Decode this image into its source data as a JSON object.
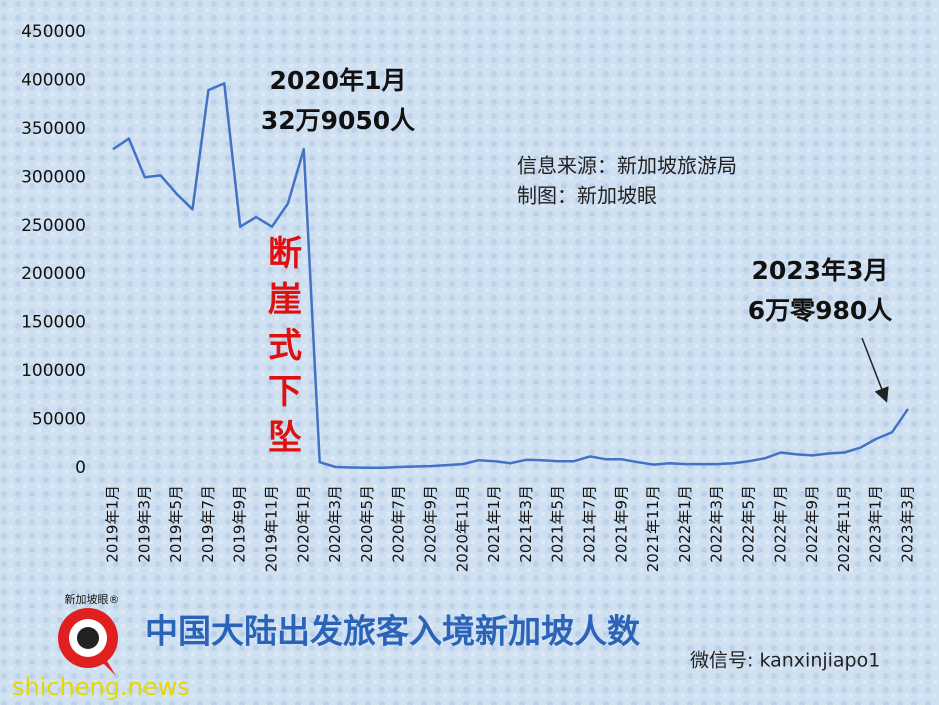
{
  "chart_data": {
    "type": "line",
    "title": "中国大陆出发旅客入境新加坡人数",
    "categories": [
      "2019年1月",
      null,
      "2019年3月",
      null,
      "2019年5月",
      null,
      "2019年7月",
      null,
      "2019年9月",
      null,
      "2019年11月",
      null,
      "2020年1月",
      null,
      "2020年3月",
      null,
      "2020年5月",
      null,
      "2020年7月",
      null,
      "2020年9月",
      null,
      "2020年11月",
      null,
      "2021年1月",
      null,
      "2021年3月",
      null,
      "2021年5月",
      null,
      "2021年7月",
      null,
      "2021年9月",
      null,
      "2021年11月",
      null,
      "2022年1月",
      null,
      "2022年3月",
      null,
      "2022年5月",
      null,
      "2022年7月",
      null,
      "2022年9月",
      null,
      "2022年11月",
      null,
      "2023年1月",
      null,
      "2023年3月"
    ],
    "series": [
      {
        "color": "#4472c4",
        "values": [
          329000,
          340000,
          300000,
          302000,
          283000,
          267000,
          390000,
          397000,
          249000,
          259000,
          249000,
          273000,
          329050,
          6000,
          1000,
          500,
          300,
          300,
          1000,
          1500,
          2000,
          3000,
          4000,
          8000,
          7000,
          5000,
          8500,
          8000,
          7000,
          7000,
          12000,
          9000,
          9000,
          6000,
          3500,
          5000,
          4000,
          4000,
          4000,
          5000,
          7000,
          10000,
          16000,
          14000,
          13000,
          15000,
          16000,
          21000,
          30000,
          37000,
          60980
        ]
      }
    ],
    "ylim": [
      0,
      450000
    ],
    "yticks": [
      0,
      50000,
      100000,
      150000,
      200000,
      250000,
      300000,
      350000,
      400000,
      450000
    ],
    "annotations": {
      "peak_date": "2020年1月",
      "peak_value": "32万9050人",
      "drop": "断崖式下坠",
      "source": "信息来源：新加坡旅游局",
      "credit": "制图：新加坡眼",
      "end_date": "2023年3月",
      "end_value": "6万零980人"
    },
    "logo": "新加坡眼®",
    "wechat": "微信号: kanxinjiapo1",
    "watermark": "shicheng.news"
  }
}
